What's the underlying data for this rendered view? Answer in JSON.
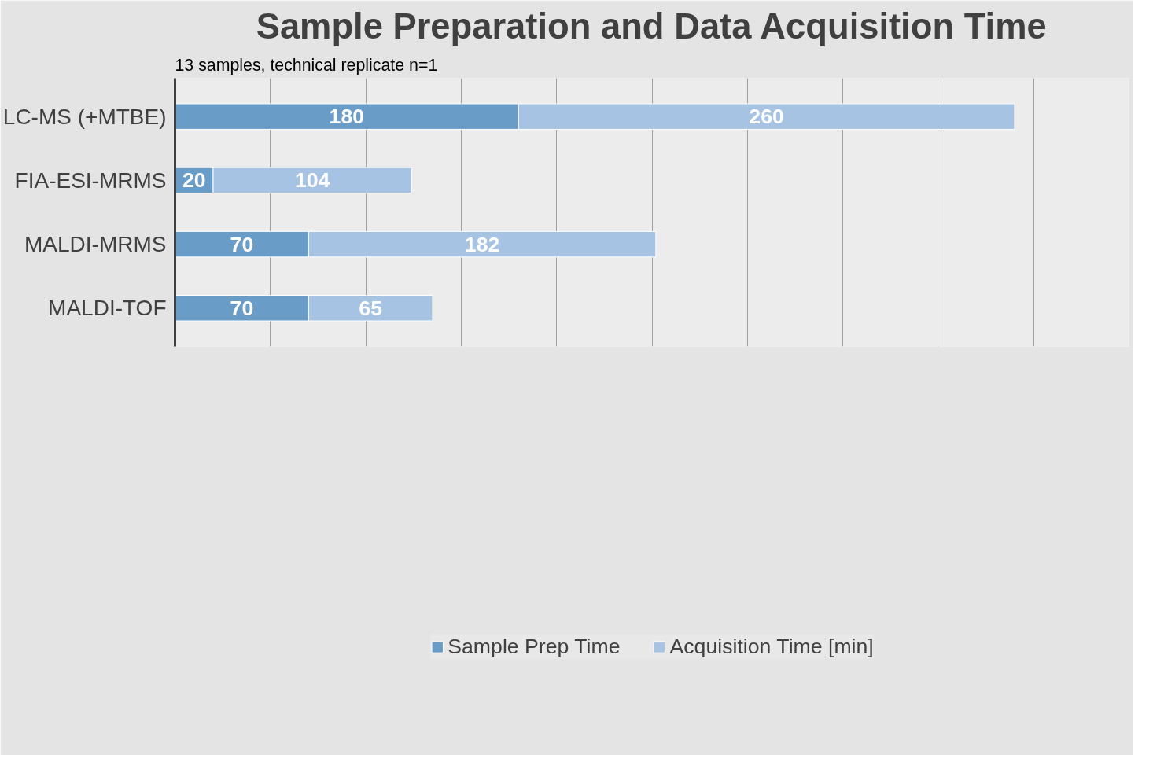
{
  "chart_data": {
    "type": "bar",
    "orientation": "horizontal",
    "stacked": true,
    "title": "Sample Preparation and Data Acquisition Time",
    "subtitle": "13 samples, technical replicate n=1",
    "categories": [
      "LC-MS (+MTBE)",
      "FIA-ESI-MRMS",
      "MALDI-MRMS",
      "MALDI-TOF"
    ],
    "series": [
      {
        "name": "Sample Prep Time",
        "color": "#6a9cc8",
        "values": [
          180,
          20,
          70,
          70
        ]
      },
      {
        "name": "Acquisition Time [min]",
        "color": "#a7c3e3",
        "values": [
          260,
          104,
          182,
          65
        ]
      }
    ],
    "xlim": [
      0,
      500
    ],
    "xticks": [
      {
        "value": 0,
        "label": null
      },
      {
        "value": 50,
        "label": null
      },
      {
        "value": 100,
        "label": null
      },
      {
        "value": 150,
        "label": null
      },
      {
        "value": 200,
        "label": null
      },
      {
        "value": 250,
        "label": null
      },
      {
        "value": 300,
        "label": null
      },
      {
        "value": 350,
        "label": null
      },
      {
        "value": 400,
        "label": null
      },
      {
        "value": 450,
        "label": null
      },
      {
        "value": 500,
        "label": null
      }
    ],
    "tick_labels": "y",
    "grid": "x",
    "legend": "bottom",
    "data_labels": true
  }
}
